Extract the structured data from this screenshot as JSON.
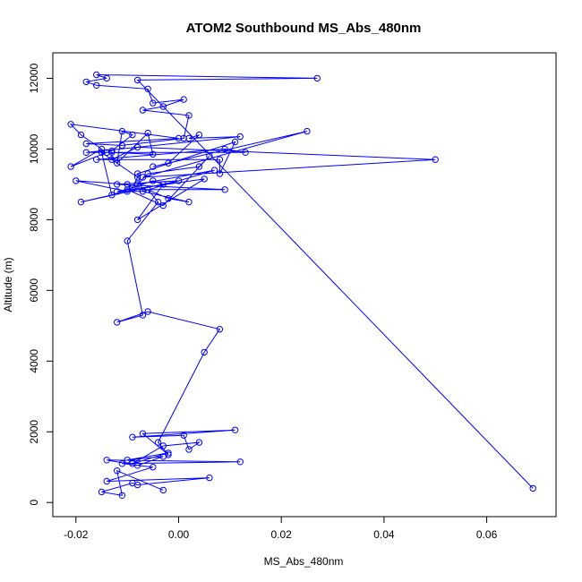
{
  "chart_data": {
    "type": "line",
    "title": "ATOM2 Southbound MS_Abs_480nm",
    "xlabel": "MS_Abs_480nm",
    "ylabel": "Altitude (m)",
    "xlim": [
      -0.0245,
      0.0735
    ],
    "ylim": [
      -400,
      12720
    ],
    "x_ticks": [
      -0.02,
      0.0,
      0.02,
      0.04,
      0.06
    ],
    "x_tick_labels": [
      "-0.02",
      "0.00",
      "0.02",
      "0.04",
      "0.06"
    ],
    "y_ticks": [
      0,
      2000,
      4000,
      6000,
      8000,
      10000,
      12000
    ],
    "y_tick_labels": [
      "0",
      "2000",
      "4000",
      "6000",
      "8000",
      "10000",
      "12000"
    ],
    "grid": false,
    "legend": "none",
    "colors": {
      "series": "#0000ff",
      "axes": "#000000",
      "background": "#ffffff"
    },
    "marker": "open-circle",
    "series": [
      {
        "x": [
          0.069,
          -0.008,
          0.027,
          -0.016,
          -0.014,
          -0.018,
          -0.016,
          -0.006,
          -0.005,
          0.001,
          -0.003,
          -0.007,
          0.002,
          0.001,
          -0.011,
          -0.018,
          0.0,
          -0.021,
          -0.019,
          -0.015,
          -0.021,
          -0.014,
          -0.013,
          -0.009,
          -0.011,
          -0.012,
          -0.006,
          -0.005,
          -0.013,
          -0.013,
          -0.008,
          0.05,
          -0.007,
          0.025,
          -0.005,
          -0.002,
          0.004,
          0.002,
          0.012,
          -0.018,
          0.013,
          0.009,
          -0.016,
          0.008,
          0.008,
          0.011,
          -0.008,
          -0.007,
          0.007,
          -0.008,
          -0.006,
          0.004,
          0.006,
          -0.003,
          -0.01,
          0.009,
          -0.012,
          0.0,
          -0.019,
          -0.01,
          -0.02,
          -0.01,
          -0.009,
          -0.008,
          -0.015,
          -0.013,
          -0.005,
          -0.003,
          -0.008,
          0.005,
          -0.012,
          -0.007,
          0.002,
          -0.002,
          -0.006,
          -0.004,
          -0.01,
          -0.007,
          -0.012,
          -0.006,
          0.008,
          0.005,
          -0.004,
          -0.002,
          -0.007,
          0.011,
          -0.009,
          0.001,
          0.002,
          0.004,
          -0.003,
          -0.009,
          -0.002,
          -0.01,
          -0.003,
          -0.008,
          -0.014,
          0.012,
          -0.011,
          -0.005,
          -0.014,
          0.006,
          -0.008,
          -0.009,
          -0.015,
          -0.011,
          -0.012,
          -0.003
        ],
        "y": [
          400,
          11950,
          12000,
          12100,
          12000,
          11900,
          11800,
          11700,
          11300,
          11400,
          11200,
          11100,
          10950,
          10300,
          10100,
          10150,
          10300,
          10700,
          10400,
          10000,
          9500,
          9900,
          9950,
          10400,
          10500,
          9600,
          10450,
          9850,
          9900,
          9700,
          10050,
          9700,
          9200,
          10500,
          9500,
          9600,
          10400,
          10300,
          10350,
          9900,
          9900,
          10000,
          9700,
          9700,
          9300,
          10200,
          9300,
          8800,
          9400,
          9000,
          9300,
          9500,
          9800,
          8400,
          8850,
          8850,
          9000,
          9100,
          8500,
          8800,
          9100,
          9000,
          8900,
          9200,
          9900,
          8700,
          9100,
          9000,
          8000,
          9150,
          8800,
          8800,
          8500,
          8600,
          8850,
          8500,
          7400,
          5300,
          5100,
          5400,
          4900,
          4250,
          1700,
          1350,
          1950,
          2050,
          1850,
          1900,
          1500,
          1700,
          1600,
          1100,
          1400,
          1200,
          1300,
          1050,
          1200,
          1150,
          1100,
          1000,
          600,
          700,
          500,
          550,
          300,
          200,
          900,
          350
        ]
      }
    ]
  }
}
